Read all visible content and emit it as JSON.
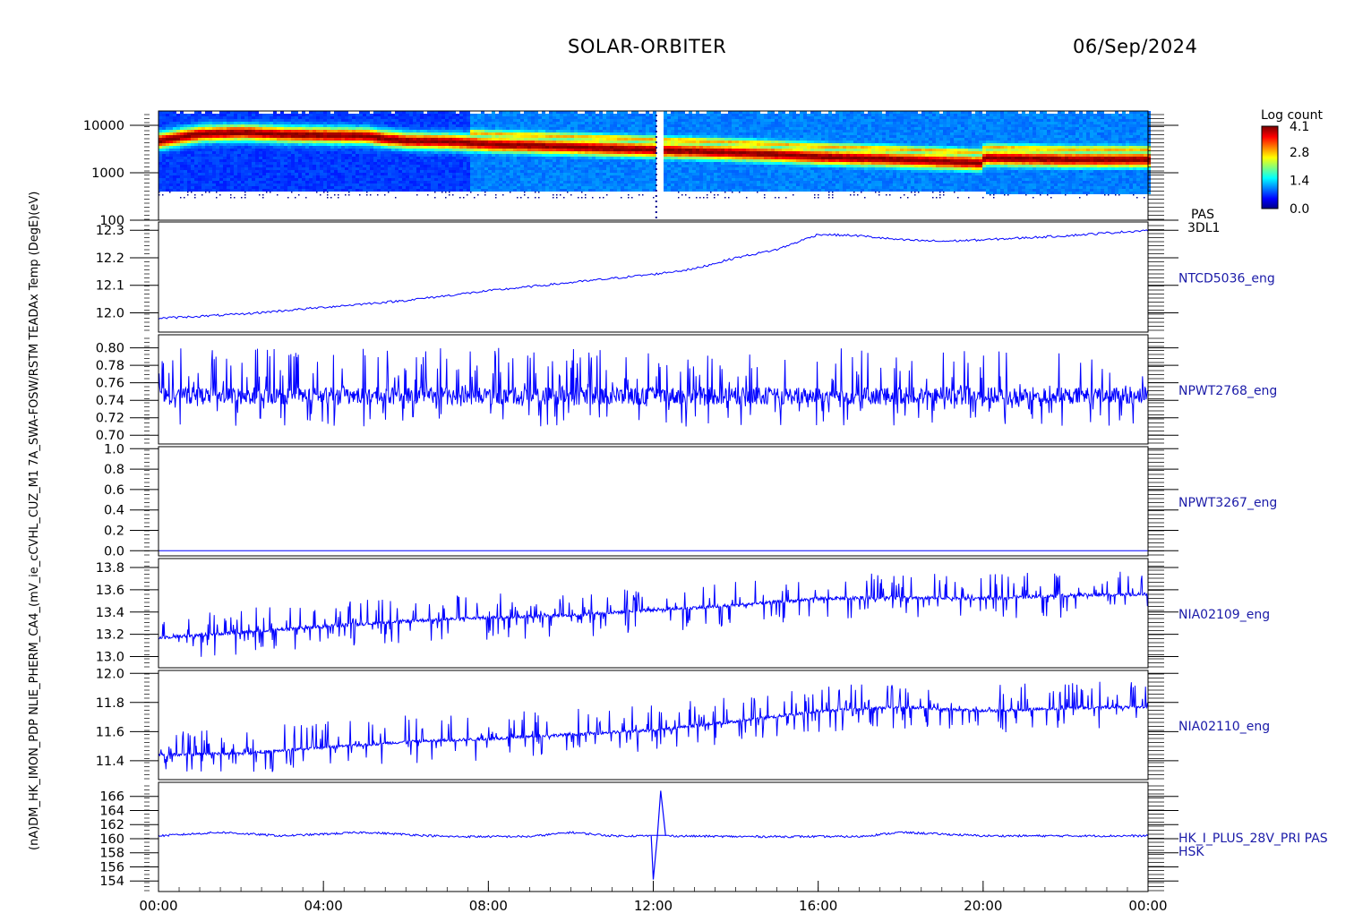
{
  "header": {
    "mission": "SOLAR-ORBITER",
    "date": "06/Sep/2024"
  },
  "colorbar": {
    "title": "Log count",
    "ticks": [
      "4.1",
      "2.8",
      "1.4",
      "0.0"
    ],
    "range": [
      0.0,
      4.1
    ]
  },
  "x_axis": {
    "ticks": [
      "00:00",
      "04:00",
      "08:00",
      "12:00",
      "16:00",
      "20:00",
      "00:00"
    ],
    "range_hours": [
      0,
      24
    ]
  },
  "left_label": "(nA)DM_HK_IMON_PDP NLIE_PHERM_CA4_(mV_ie_cCVHL_CUZ_M1 7A_SWA-FOSW/RSTM TEADAx Temp (DegE)(eV)",
  "chart_data": [
    {
      "type": "heatmap",
      "label_lines": [
        "PAS",
        "3DL1"
      ],
      "ylabel": "(eV)",
      "yscale": "log",
      "ylim": [
        100,
        20000
      ],
      "ytick_labels": [
        "10000",
        "1000",
        "100"
      ],
      "colorbar_range": [
        0.0,
        4.1
      ],
      "peak_energy_ev": [
        {
          "t": 0,
          "e": 5000
        },
        {
          "t": 1,
          "e": 7000
        },
        {
          "t": 2,
          "e": 7500
        },
        {
          "t": 3,
          "e": 6800
        },
        {
          "t": 4,
          "e": 6500
        },
        {
          "t": 5,
          "e": 6300
        },
        {
          "t": 5.5,
          "e": 5500
        },
        {
          "t": 6,
          "e": 5000
        },
        {
          "t": 7,
          "e": 4800
        },
        {
          "t": 8,
          "e": 4200
        },
        {
          "t": 10,
          "e": 3700
        },
        {
          "t": 12,
          "e": 3200
        },
        {
          "t": 14,
          "e": 2800
        },
        {
          "t": 16,
          "e": 2300
        },
        {
          "t": 18,
          "e": 2000
        },
        {
          "t": 19.9,
          "e": 1700
        },
        {
          "t": 20,
          "e": 2200
        },
        {
          "t": 22,
          "e": 2000
        },
        {
          "t": 24,
          "e": 2000
        }
      ],
      "data_gap_hours": [
        12.0,
        12.2
      ]
    },
    {
      "type": "line",
      "series": [
        {
          "name": "NTCD5036_eng"
        }
      ],
      "ylim": [
        11.93,
        12.33
      ],
      "ytick_labels": [
        "12.3",
        "12.2",
        "12.1",
        "12.0"
      ],
      "points": [
        {
          "t": 0,
          "v": 11.98
        },
        {
          "t": 2,
          "v": 11.995
        },
        {
          "t": 4,
          "v": 12.02
        },
        {
          "t": 6,
          "v": 12.045
        },
        {
          "t": 8,
          "v": 12.08
        },
        {
          "t": 10,
          "v": 12.11
        },
        {
          "t": 12,
          "v": 12.14
        },
        {
          "t": 13,
          "v": 12.16
        },
        {
          "t": 14,
          "v": 12.2
        },
        {
          "t": 15,
          "v": 12.23
        },
        {
          "t": 16,
          "v": 12.285
        },
        {
          "t": 17,
          "v": 12.28
        },
        {
          "t": 18,
          "v": 12.265
        },
        {
          "t": 19,
          "v": 12.26
        },
        {
          "t": 20,
          "v": 12.265
        },
        {
          "t": 22,
          "v": 12.28
        },
        {
          "t": 24,
          "v": 12.3
        }
      ]
    },
    {
      "type": "line",
      "series": [
        {
          "name": "NPWT2768_eng"
        }
      ],
      "ylim": [
        0.69,
        0.815
      ],
      "ytick_labels": [
        "0.80",
        "0.78",
        "0.76",
        "0.74",
        "0.72",
        "0.70"
      ],
      "baseline": 0.745,
      "noise_range": [
        0.705,
        0.8
      ]
    },
    {
      "type": "line",
      "series": [
        {
          "name": "NPWT3267_eng"
        }
      ],
      "ylim": [
        -0.05,
        1.02
      ],
      "ytick_labels": [
        "1.0",
        "0.8",
        "0.6",
        "0.4",
        "0.2",
        "0.0"
      ],
      "constant_value": 0.0
    },
    {
      "type": "line",
      "series": [
        {
          "name": "NIA02109_eng"
        }
      ],
      "ylim": [
        12.9,
        13.88
      ],
      "ytick_labels": [
        "13.8",
        "13.6",
        "13.4",
        "13.2",
        "13.0"
      ],
      "trend": [
        {
          "t": 0,
          "v": 13.17
        },
        {
          "t": 2,
          "v": 13.22
        },
        {
          "t": 4,
          "v": 13.27
        },
        {
          "t": 6,
          "v": 13.32
        },
        {
          "t": 8,
          "v": 13.35
        },
        {
          "t": 10,
          "v": 13.37
        },
        {
          "t": 12,
          "v": 13.42
        },
        {
          "t": 14,
          "v": 13.46
        },
        {
          "t": 16,
          "v": 13.52
        },
        {
          "t": 18,
          "v": 13.53
        },
        {
          "t": 20,
          "v": 13.52
        },
        {
          "t": 22,
          "v": 13.55
        },
        {
          "t": 24,
          "v": 13.56
        }
      ]
    },
    {
      "type": "line",
      "series": [
        {
          "name": "NIA02110_eng"
        }
      ],
      "ylim": [
        11.27,
        12.02
      ],
      "ytick_labels": [
        "12.0",
        "11.8",
        "11.6",
        "11.4"
      ],
      "trend": [
        {
          "t": 0,
          "v": 11.44
        },
        {
          "t": 2,
          "v": 11.45
        },
        {
          "t": 4,
          "v": 11.49
        },
        {
          "t": 6,
          "v": 11.53
        },
        {
          "t": 8,
          "v": 11.55
        },
        {
          "t": 10,
          "v": 11.58
        },
        {
          "t": 12,
          "v": 11.61
        },
        {
          "t": 14,
          "v": 11.67
        },
        {
          "t": 16,
          "v": 11.74
        },
        {
          "t": 18,
          "v": 11.77
        },
        {
          "t": 20,
          "v": 11.74
        },
        {
          "t": 22,
          "v": 11.76
        },
        {
          "t": 24,
          "v": 11.77
        }
      ]
    },
    {
      "type": "line",
      "series": [
        {
          "name": "HK_I_PLUS_28V_PRI PAS HSK"
        }
      ],
      "label_lines": [
        "HK_I_PLUS_28V_PRI PAS",
        "HSK"
      ],
      "ylabel": "(nA)",
      "ylim": [
        152.5,
        168
      ],
      "ytick_labels": [
        "166",
        "164",
        "162",
        "160",
        "158",
        "156",
        "154"
      ],
      "points": [
        {
          "t": 0,
          "v": 160.4
        },
        {
          "t": 1.5,
          "v": 160.9
        },
        {
          "t": 3,
          "v": 160.4
        },
        {
          "t": 5,
          "v": 160.9
        },
        {
          "t": 7,
          "v": 160.3
        },
        {
          "t": 9,
          "v": 160.3
        },
        {
          "t": 10,
          "v": 160.9
        },
        {
          "t": 11,
          "v": 160.4
        },
        {
          "t": 11.95,
          "v": 160.4
        },
        {
          "t": 12.0,
          "v": 154.2
        },
        {
          "t": 12.1,
          "v": 160.4
        },
        {
          "t": 12.18,
          "v": 166.8
        },
        {
          "t": 12.3,
          "v": 160.4
        },
        {
          "t": 14,
          "v": 160.3
        },
        {
          "t": 17,
          "v": 160.3
        },
        {
          "t": 18,
          "v": 160.9
        },
        {
          "t": 20,
          "v": 160.4
        },
        {
          "t": 24,
          "v": 160.4
        }
      ]
    }
  ],
  "colors": {
    "trace": "#0000ff",
    "text_label": "#1a1aa8",
    "axis": "#000000"
  }
}
